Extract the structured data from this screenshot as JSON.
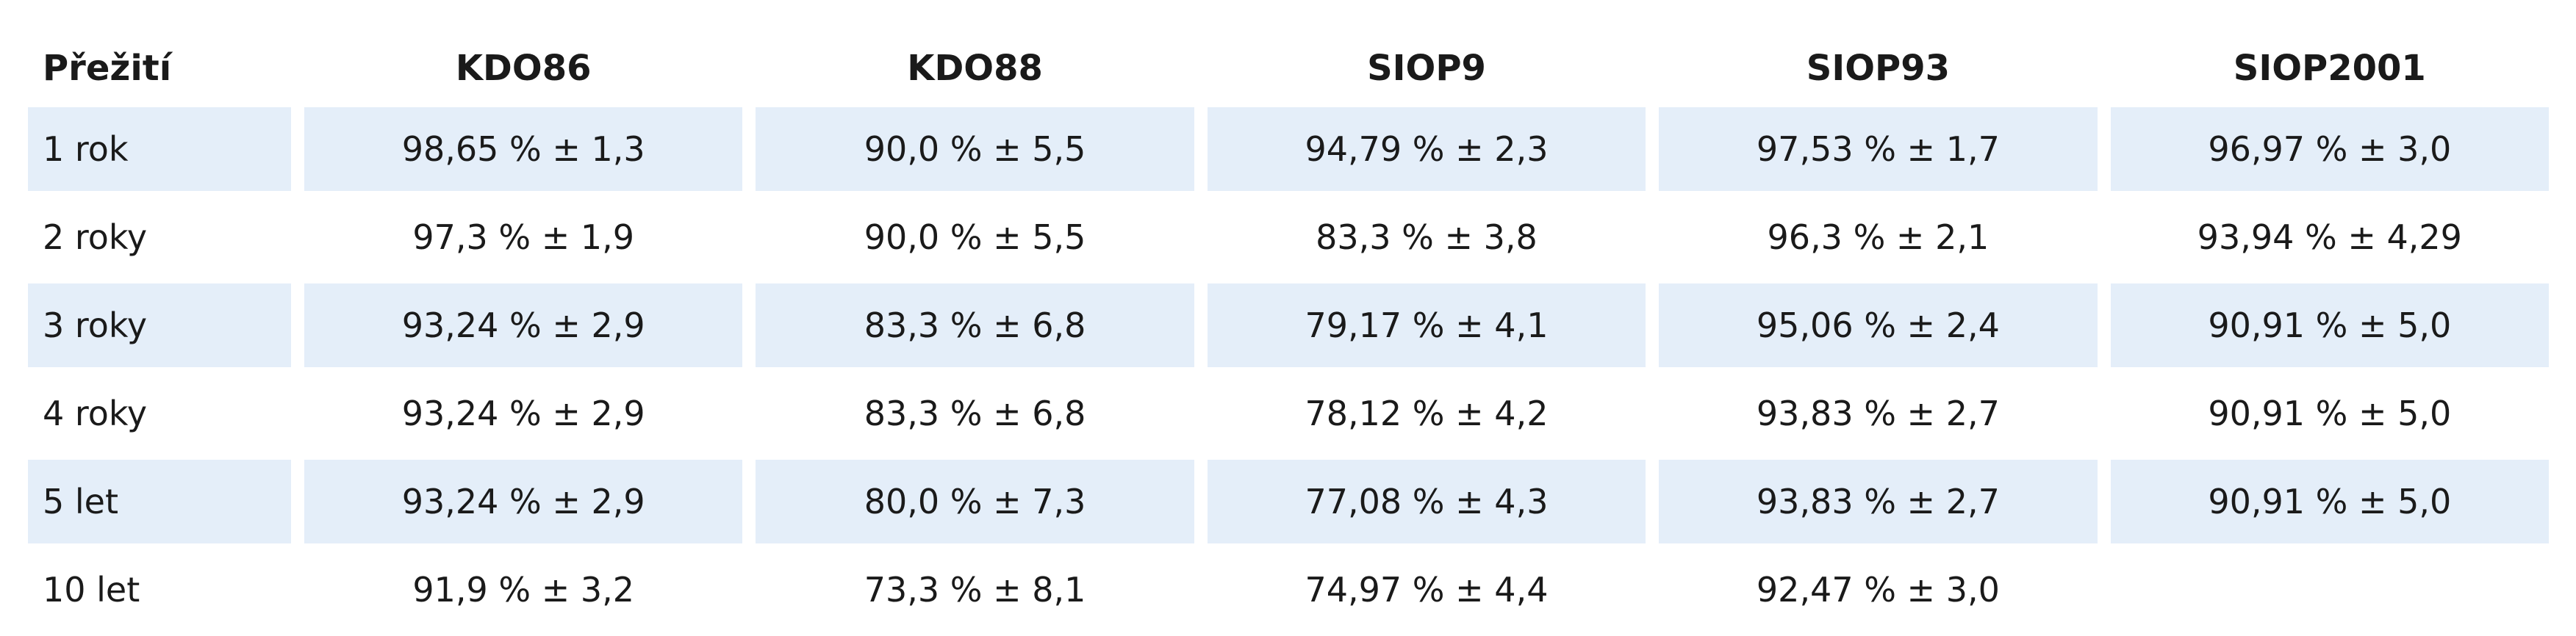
{
  "table": {
    "headers": [
      "Přežití",
      "KDO86",
      "KDO88",
      "SIOP9",
      "SIOP93",
      "SIOP2001"
    ],
    "rows": [
      [
        "1 rok",
        "98,65 % ± 1,3",
        "90,0 % ± 5,5",
        "94,79 % ± 2,3",
        "97,53 % ± 1,7",
        "96,97 % ± 3,0"
      ],
      [
        "2 roky",
        "97,3 % ± 1,9",
        "90,0 % ± 5,5",
        "83,3 % ± 3,8",
        "96,3 % ± 2,1",
        "93,94 % ± 4,29"
      ],
      [
        "3 roky",
        "93,24 % ± 2,9",
        "83,3 % ± 6,8",
        "79,17 % ± 4,1",
        "95,06 % ± 2,4",
        "90,91 % ± 5,0"
      ],
      [
        "4 roky",
        "93,24 % ± 2,9",
        "83,3 % ± 6,8",
        "78,12 % ± 4,2",
        "93,83 % ± 2,7",
        "90,91 % ± 5,0"
      ],
      [
        "5 let",
        "93,24 % ± 2,9",
        "80,0 % ± 7,3",
        "77,08 % ± 4,3",
        "93,83 % ± 2,7",
        "90,91 % ± 5,0"
      ],
      [
        "10 let",
        "91,9 % ± 3,2",
        "73,3 % ± 8,1",
        "74,97 % ± 4,4",
        "92,47 % ± 3,0",
        ""
      ]
    ],
    "shaded_row_color": "#e4eef9"
  }
}
